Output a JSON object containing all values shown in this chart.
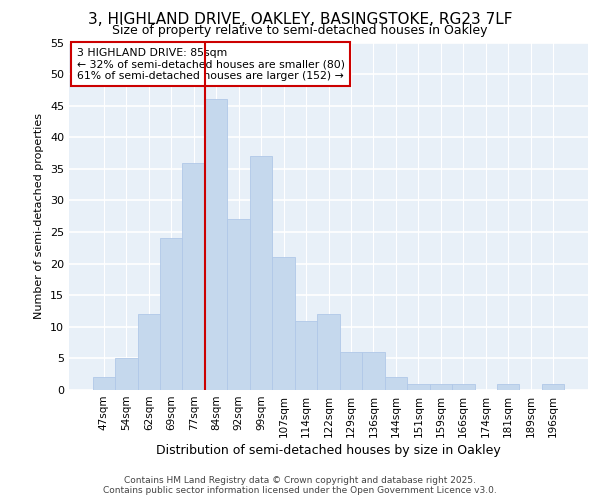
{
  "title_line1": "3, HIGHLAND DRIVE, OAKLEY, BASINGSTOKE, RG23 7LF",
  "title_line2": "Size of property relative to semi-detached houses in Oakley",
  "xlabel": "Distribution of semi-detached houses by size in Oakley",
  "ylabel": "Number of semi-detached properties",
  "categories": [
    "47sqm",
    "54sqm",
    "62sqm",
    "69sqm",
    "77sqm",
    "84sqm",
    "92sqm",
    "99sqm",
    "107sqm",
    "114sqm",
    "122sqm",
    "129sqm",
    "136sqm",
    "144sqm",
    "151sqm",
    "159sqm",
    "166sqm",
    "174sqm",
    "181sqm",
    "189sqm",
    "196sqm"
  ],
  "values": [
    2,
    5,
    12,
    24,
    36,
    46,
    27,
    37,
    21,
    11,
    12,
    6,
    6,
    2,
    1,
    1,
    1,
    0,
    1,
    0,
    1
  ],
  "bar_color": "#c5d8ed",
  "bar_edge_color": "#b0c8e8",
  "vline_index": 5,
  "vline_color": "#cc0000",
  "ylim": [
    0,
    55
  ],
  "yticks": [
    0,
    5,
    10,
    15,
    20,
    25,
    30,
    35,
    40,
    45,
    50,
    55
  ],
  "annotation_title": "3 HIGHLAND DRIVE: 85sqm",
  "annotation_line2": "← 32% of semi-detached houses are smaller (80)",
  "annotation_line3": "61% of semi-detached houses are larger (152) →",
  "annotation_box_facecolor": "#ffffff",
  "annotation_box_edgecolor": "#cc0000",
  "bg_color": "#ffffff",
  "plot_bg_color": "#e8f0f8",
  "grid_color": "#ffffff",
  "footer_line1": "Contains HM Land Registry data © Crown copyright and database right 2025.",
  "footer_line2": "Contains public sector information licensed under the Open Government Licence v3.0.",
  "title_fontsize": 11,
  "subtitle_fontsize": 9,
  "tick_fontsize": 7.5,
  "ylabel_fontsize": 8,
  "xlabel_fontsize": 9,
  "footer_fontsize": 6.5
}
